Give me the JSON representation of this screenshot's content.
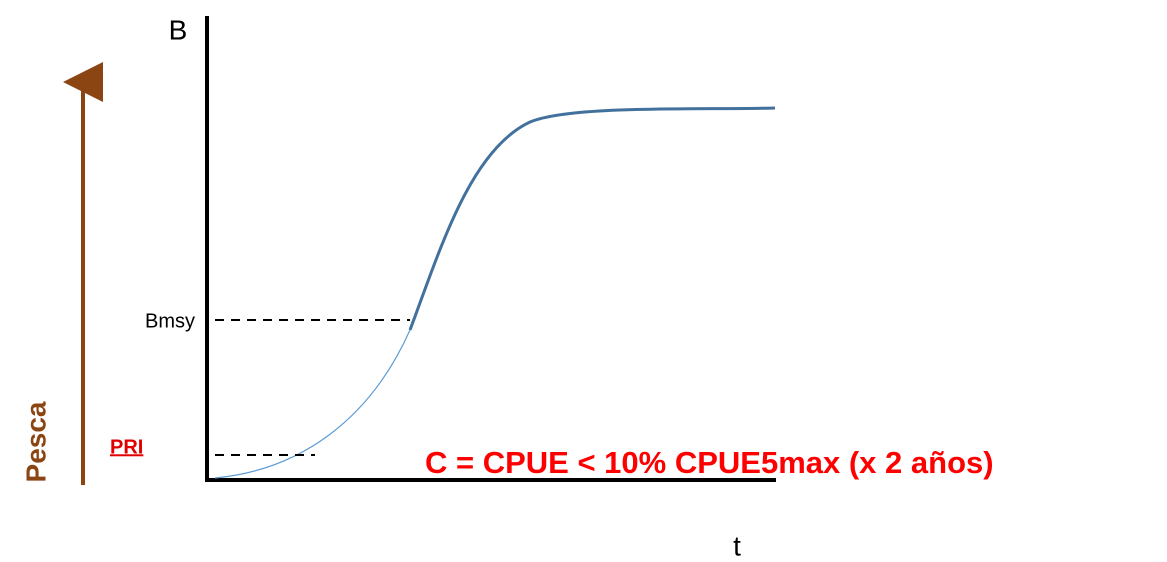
{
  "axes": {
    "y_label": "B",
    "x_label": "t"
  },
  "levels": {
    "bmsy": "Bmsy",
    "pri": "PRI"
  },
  "side_label": "Pesca",
  "formula": "C = CPUE < 10% CPUE5max (x 2 años)"
}
